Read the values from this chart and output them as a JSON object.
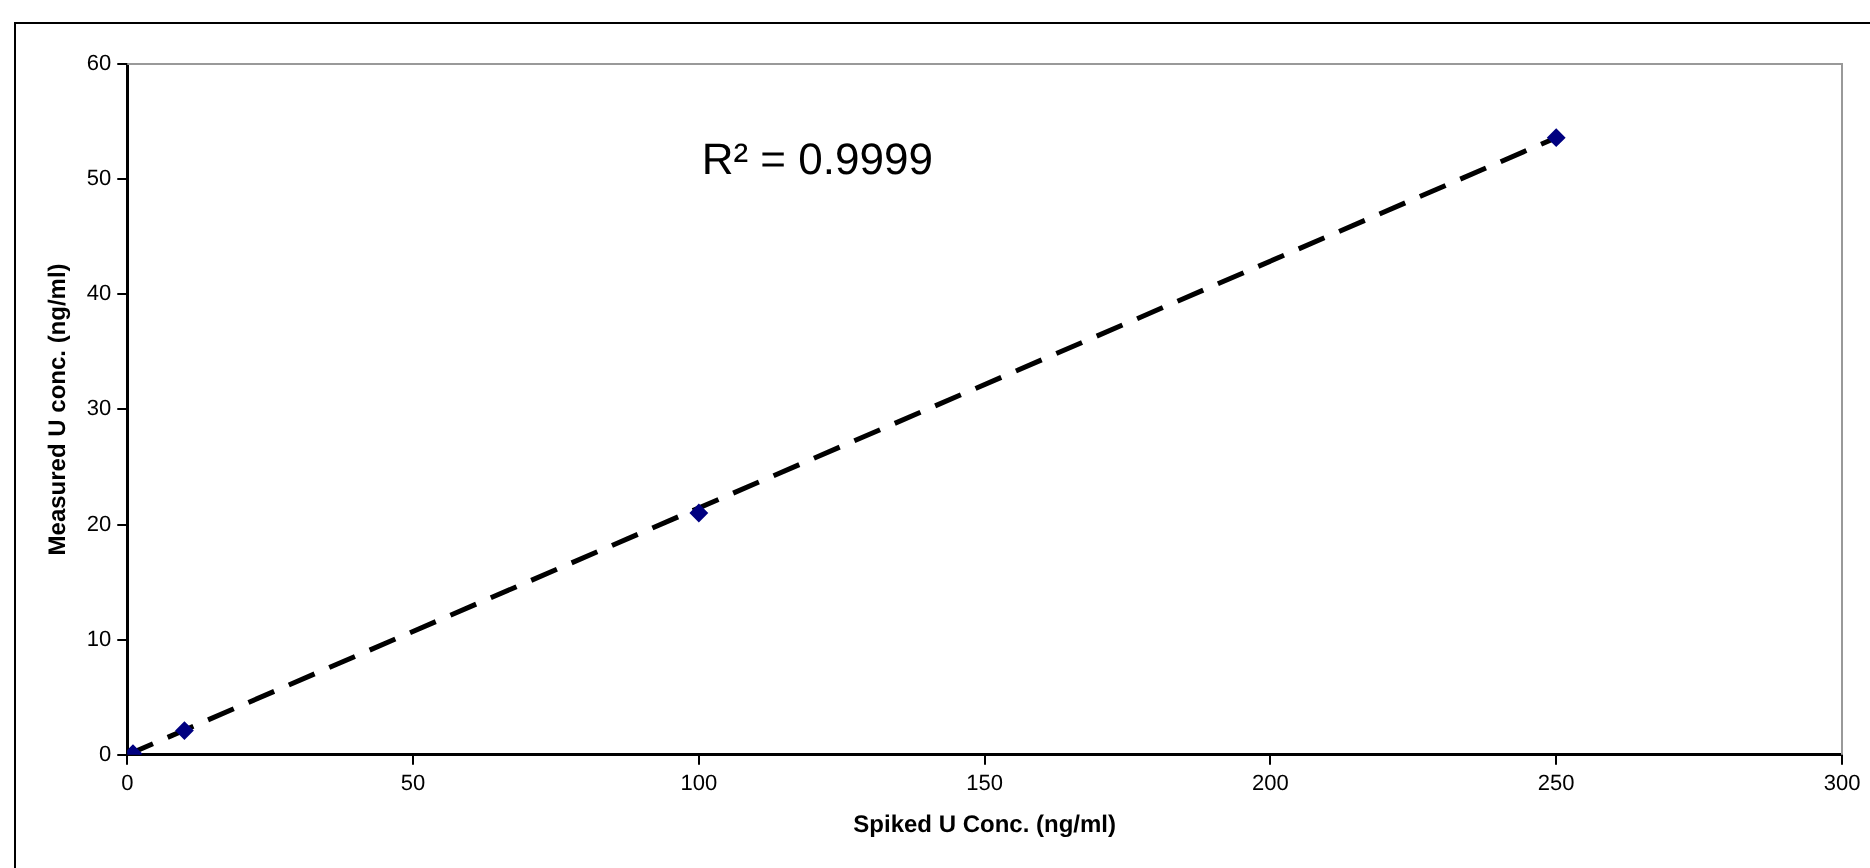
{
  "chart_data": {
    "type": "scatter",
    "xlabel": "Spiked U Conc. (ng/ml)",
    "ylabel": "Measured U conc. (ng/ml)",
    "annotations": [
      "R² = 0.9999"
    ],
    "xlim": [
      0,
      300
    ],
    "xticks": [
      0,
      50,
      100,
      150,
      200,
      250,
      300
    ],
    "ylim": [
      0,
      60
    ],
    "yticks": [
      0,
      10,
      20,
      30,
      40,
      50,
      60
    ],
    "grid": false,
    "legend": false,
    "marker": "diamond",
    "series": [
      {
        "color": "#000080",
        "x": [
          1,
          10,
          100,
          250
        ],
        "values": [
          0.1,
          2.1,
          21,
          53.6
        ]
      },
      {
        "type": "line",
        "color": "#000000",
        "line_style": "dashed",
        "marker": "none",
        "x": [
          0,
          250
        ],
        "values": [
          0,
          53.6
        ]
      }
    ]
  }
}
